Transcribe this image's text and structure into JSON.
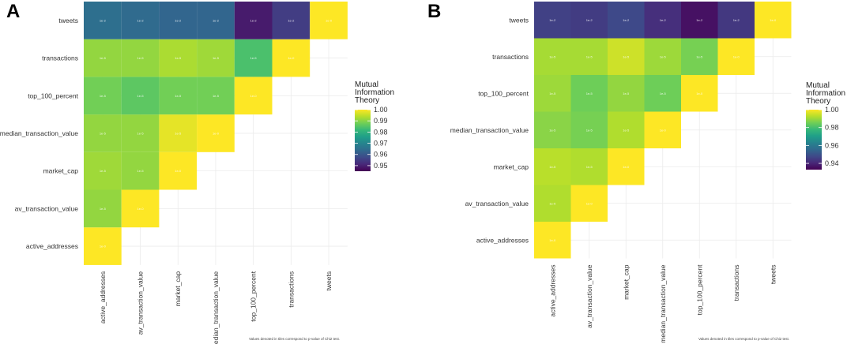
{
  "chart_data": [
    {
      "type": "heatmap",
      "panel_label": "A",
      "variables": [
        "active_addresses",
        "av_transaction_value",
        "market_cap",
        "median_transaction_value",
        "top_100_percent",
        "transactions",
        "tweets"
      ],
      "values": [
        [
          1.0,
          0.991,
          0.992,
          0.991,
          0.988,
          0.991,
          0.965
        ],
        [
          null,
          1.0,
          0.991,
          0.991,
          0.986,
          0.991,
          0.964
        ],
        [
          null,
          null,
          1.0,
          0.998,
          0.988,
          0.993,
          0.963
        ],
        [
          null,
          null,
          null,
          1.0,
          0.988,
          0.992,
          0.963
        ],
        [
          null,
          null,
          null,
          null,
          1.0,
          0.984,
          0.949
        ],
        [
          null,
          null,
          null,
          null,
          null,
          1.0,
          0.955
        ],
        [
          null,
          null,
          null,
          null,
          null,
          null,
          1.0
        ]
      ],
      "cell_text": [
        [
          "1e-0",
          "1e-5",
          "1e-5",
          "1e-5",
          "1e-5",
          "1e-5",
          "1e-2"
        ],
        [
          null,
          "1e-0",
          "1e-5",
          "1e-5",
          "1e-5",
          "1e-5",
          "1e-2"
        ],
        [
          null,
          null,
          "1e-0",
          "1e-5",
          "1e-5",
          "1e-5",
          "1e-2"
        ],
        [
          null,
          null,
          null,
          "1e-0",
          "1e-5",
          "1e-5",
          "1e-2"
        ],
        [
          null,
          null,
          null,
          null,
          "1e-0",
          "1e-5",
          "1e-2"
        ],
        [
          null,
          null,
          null,
          null,
          null,
          "1e-0",
          "1e-2"
        ],
        [
          null,
          null,
          null,
          null,
          null,
          null,
          "1e-0"
        ]
      ],
      "legend": {
        "title": [
          "Mutual",
          "Information",
          "Theory"
        ],
        "ticks": [
          1.0,
          0.99,
          0.98,
          0.97,
          0.96,
          0.95
        ],
        "tick_labels": [
          "1.00",
          "0.99",
          "0.98",
          "0.97",
          "0.96",
          "0.95"
        ],
        "range": [
          0.945,
          1.0
        ]
      },
      "caption": "Values denoted in tiles correspond to p-value of Chi2 test."
    },
    {
      "type": "heatmap",
      "panel_label": "B",
      "variables": [
        "active_addresses",
        "av_transaction_value",
        "market_cap",
        "median_transaction_value",
        "top_100_percent",
        "transactions",
        "tweets"
      ],
      "values": [
        [
          1.0,
          0.992,
          0.993,
          0.988,
          0.99,
          0.991,
          0.946
        ],
        [
          null,
          1.0,
          0.992,
          0.986,
          0.985,
          0.991,
          0.945
        ],
        [
          null,
          null,
          1.0,
          0.992,
          0.989,
          0.995,
          0.948
        ],
        [
          null,
          null,
          null,
          1.0,
          0.985,
          0.99,
          0.942
        ],
        [
          null,
          null,
          null,
          null,
          1.0,
          0.986,
          0.936
        ],
        [
          null,
          null,
          null,
          null,
          null,
          1.0,
          0.944
        ],
        [
          null,
          null,
          null,
          null,
          null,
          null,
          1.0
        ]
      ],
      "cell_text": [
        [
          "1e-0",
          "1e-5",
          "1e-5",
          "1e-5",
          "1e-5",
          "1e-5",
          "1e-2"
        ],
        [
          null,
          "1e-0",
          "1e-5",
          "1e-5",
          "1e-5",
          "1e-5",
          "1e-2"
        ],
        [
          null,
          null,
          "1e-0",
          "1e-5",
          "1e-5",
          "1e-5",
          "1e-2"
        ],
        [
          null,
          null,
          null,
          "1e-0",
          "1e-5",
          "1e-5",
          "1e-2"
        ],
        [
          null,
          null,
          null,
          null,
          "1e-0",
          "1e-5",
          "1e-2"
        ],
        [
          null,
          null,
          null,
          null,
          null,
          "1e-0",
          "1e-2"
        ],
        [
          null,
          null,
          null,
          null,
          null,
          null,
          "1e-0"
        ]
      ],
      "legend": {
        "title": [
          "Mutual",
          "Information",
          "Theory"
        ],
        "ticks": [
          1.0,
          0.98,
          0.96,
          0.94
        ],
        "tick_labels": [
          "1.00",
          "0.98",
          "0.96",
          "0.94"
        ],
        "range": [
          0.933,
          1.0
        ]
      },
      "caption": "Values denoted in tiles correspond to p-value of Chi2 test."
    }
  ],
  "colors": {
    "viridis": [
      "#440154",
      "#482878",
      "#3e4989",
      "#31688e",
      "#26828e",
      "#1f9e89",
      "#35b779",
      "#6ece58",
      "#b5de2b",
      "#fde725"
    ],
    "grid": "#ebebeb",
    "background": "#ffffff"
  }
}
